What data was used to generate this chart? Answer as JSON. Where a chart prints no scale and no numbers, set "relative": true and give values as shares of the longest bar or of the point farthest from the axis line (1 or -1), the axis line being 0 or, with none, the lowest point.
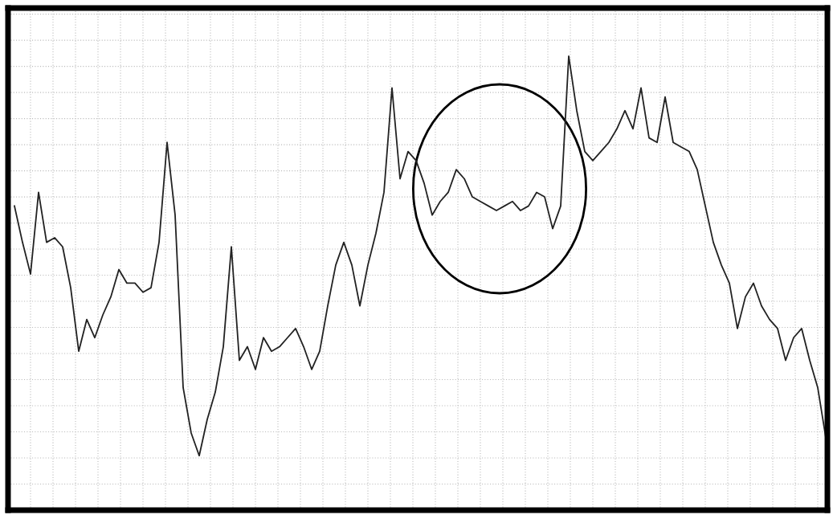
{
  "chart_data": {
    "type": "line",
    "relative": true,
    "grid": true,
    "color": "#222222",
    "categories": [
      null,
      null,
      null,
      null,
      null,
      null,
      null,
      null,
      null,
      null,
      null,
      null,
      null,
      null,
      null,
      null,
      null,
      null,
      null,
      null,
      null,
      null,
      null,
      null,
      null,
      null,
      null,
      null,
      null,
      null,
      null,
      null,
      null,
      null,
      null,
      null,
      null,
      null,
      null,
      null,
      null,
      null,
      null,
      null,
      null,
      null,
      null,
      null,
      null,
      null,
      null,
      null,
      null,
      null,
      null,
      null,
      null,
      null,
      null,
      null,
      null,
      null,
      null,
      null,
      null,
      null,
      null,
      null,
      null,
      null,
      null,
      null,
      null,
      null,
      null,
      null,
      null,
      null,
      null,
      null,
      null,
      null,
      null,
      null,
      null,
      null,
      null,
      null,
      null,
      null,
      null,
      null,
      null,
      null,
      null,
      null,
      null,
      null,
      null,
      null,
      null,
      null
    ],
    "values": [
      0.67,
      0.59,
      0.52,
      0.7,
      0.59,
      0.6,
      0.58,
      0.49,
      0.35,
      0.42,
      0.38,
      0.43,
      0.47,
      0.53,
      0.5,
      0.5,
      0.48,
      0.49,
      0.59,
      0.81,
      0.65,
      0.27,
      0.17,
      0.12,
      0.2,
      0.26,
      0.36,
      0.58,
      0.33,
      0.36,
      0.31,
      0.38,
      0.35,
      0.36,
      0.38,
      0.4,
      0.36,
      0.31,
      0.35,
      0.45,
      0.54,
      0.59,
      0.54,
      0.45,
      0.54,
      0.61,
      0.7,
      0.93,
      0.73,
      0.79,
      0.77,
      0.72,
      0.65,
      0.68,
      0.7,
      0.75,
      0.73,
      0.69,
      0.68,
      0.67,
      0.66,
      0.67,
      0.68,
      0.66,
      0.67,
      0.7,
      0.69,
      0.62,
      0.67,
      1,
      0.88,
      0.79,
      0.77,
      0.79,
      0.81,
      0.84,
      0.88,
      0.84,
      0.93,
      0.82,
      0.81,
      0.91,
      0.81,
      0.8,
      0.79,
      0.75,
      0.67,
      0.59,
      0.54,
      0.5,
      0.4,
      0.47,
      0.5,
      0.45,
      0.42,
      0.4,
      0.33,
      0.38,
      0.4,
      0.33,
      0.27,
      0.16
    ]
  }
}
